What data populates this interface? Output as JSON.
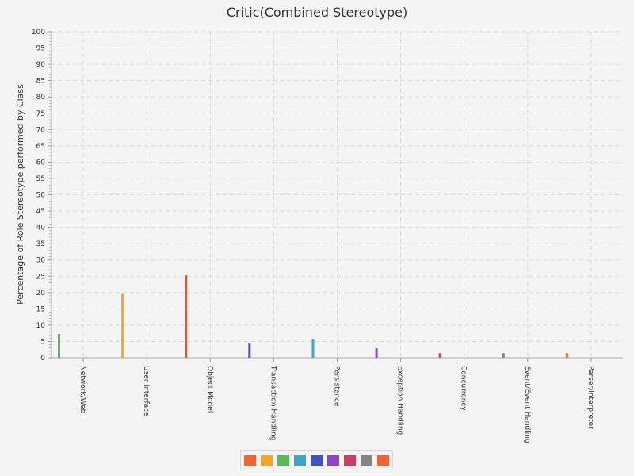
{
  "chart_data": {
    "type": "bar",
    "title": "Critic(Combined Stereotype)",
    "xlabel": "",
    "ylabel": "Percentage of Role Stereotype performed by Class",
    "ylim": [
      0,
      100
    ],
    "ytick_step": 5,
    "grid": true,
    "legend": "bottom",
    "categories": [
      "Network/Web",
      "User Interface",
      "Object Model",
      "Transaction Handling",
      "Persistence",
      "Exception Handling",
      "Concurrency",
      "Event/Event Handling",
      "Parser/Interpreter"
    ],
    "series": [
      {
        "color": "#f26430",
        "values": [
          0,
          0,
          0,
          0,
          0,
          0,
          0,
          0,
          0
        ]
      },
      {
        "color": "#f5a623",
        "values": [
          0,
          0,
          0,
          0,
          0,
          0,
          0,
          0,
          0
        ]
      },
      {
        "color": "#5cb85c",
        "values": [
          7.3,
          0,
          0,
          0,
          0,
          0,
          0,
          0,
          0
        ]
      },
      {
        "color": "#f5a623",
        "values": [
          0,
          19.8,
          0,
          0,
          0,
          0,
          0,
          0,
          0
        ]
      },
      {
        "color": "#e8562a",
        "values": [
          0,
          0,
          25.3,
          0,
          0,
          0,
          0,
          0,
          0
        ]
      },
      {
        "color": "#4052c4",
        "values": [
          0,
          0,
          0,
          4.6,
          0,
          0,
          0,
          0,
          0
        ]
      },
      {
        "color": "#3da6c8",
        "values": [
          0,
          0,
          0,
          0,
          5.8,
          0,
          0,
          0,
          0
        ]
      },
      {
        "color": "#8e44c8",
        "values": [
          0,
          0,
          0,
          0,
          0,
          2.9,
          0,
          0,
          0
        ]
      },
      {
        "color": "#c9415f",
        "values": [
          0,
          0,
          0,
          0,
          0,
          0,
          1.4,
          0,
          0
        ]
      },
      {
        "color": "#848484",
        "values": [
          0,
          0,
          0,
          0,
          0,
          0,
          0,
          1.4,
          0
        ]
      },
      {
        "color": "#f26430",
        "values": [
          0,
          0,
          0,
          0,
          0,
          0,
          0,
          0,
          1.4
        ]
      }
    ],
    "legend_colors": [
      "#f26430",
      "#f5a623",
      "#5cb85c",
      "#3da6c8",
      "#4052c4",
      "#8e44c8",
      "#c9415f",
      "#848484",
      "#f26430"
    ]
  }
}
